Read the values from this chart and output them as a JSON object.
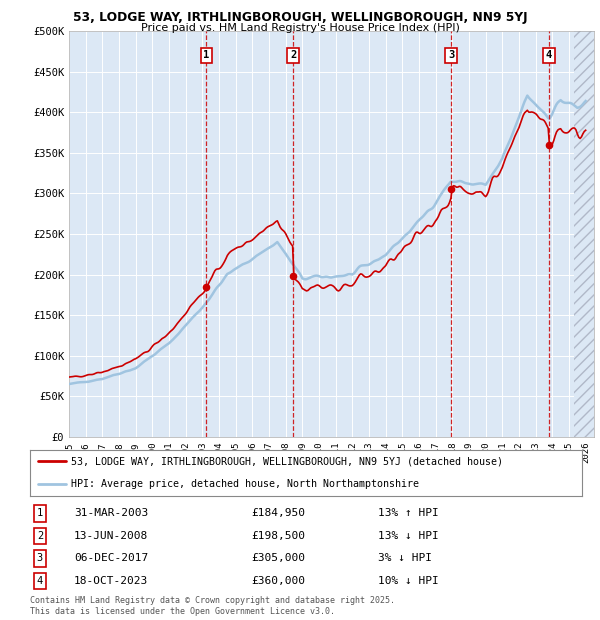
{
  "title_line1": "53, LODGE WAY, IRTHLINGBOROUGH, WELLINGBOROUGH, NN9 5YJ",
  "title_line2": "Price paid vs. HM Land Registry's House Price Index (HPI)",
  "background_color": "#ffffff",
  "plot_bg_color": "#dce8f5",
  "grid_color": "#ffffff",
  "ylim": [
    0,
    500000
  ],
  "yticks": [
    0,
    50000,
    100000,
    150000,
    200000,
    250000,
    300000,
    350000,
    400000,
    450000,
    500000
  ],
  "ytick_labels": [
    "£0",
    "£50K",
    "£100K",
    "£150K",
    "£200K",
    "£250K",
    "£300K",
    "£350K",
    "£400K",
    "£450K",
    "£500K"
  ],
  "xlim_start": 1995.0,
  "xlim_end": 2026.5,
  "hpi_color": "#a0c4e0",
  "price_color": "#cc0000",
  "transactions": [
    {
      "num": 1,
      "year": 2003.25,
      "price": 184950,
      "label": "1",
      "date": "31-MAR-2003",
      "price_str": "£184,950",
      "pct": "13%",
      "dir": "↑",
      "rel": "HPI"
    },
    {
      "num": 2,
      "year": 2008.45,
      "price": 198500,
      "label": "2",
      "date": "13-JUN-2008",
      "price_str": "£198,500",
      "pct": "13%",
      "dir": "↓",
      "rel": "HPI"
    },
    {
      "num": 3,
      "year": 2017.92,
      "price": 305000,
      "label": "3",
      "date": "06-DEC-2017",
      "price_str": "£305,000",
      "pct": "3%",
      "dir": "↓",
      "rel": "HPI"
    },
    {
      "num": 4,
      "year": 2023.8,
      "price": 360000,
      "label": "4",
      "date": "18-OCT-2023",
      "price_str": "£360,000",
      "pct": "10%",
      "dir": "↓",
      "rel": "HPI"
    }
  ],
  "legend_red_label": "53, LODGE WAY, IRTHLINGBOROUGH, WELLINGBOROUGH, NN9 5YJ (detached house)",
  "legend_blue_label": "HPI: Average price, detached house, North Northamptonshire",
  "footnote": "Contains HM Land Registry data © Crown copyright and database right 2025.\nThis data is licensed under the Open Government Licence v3.0."
}
